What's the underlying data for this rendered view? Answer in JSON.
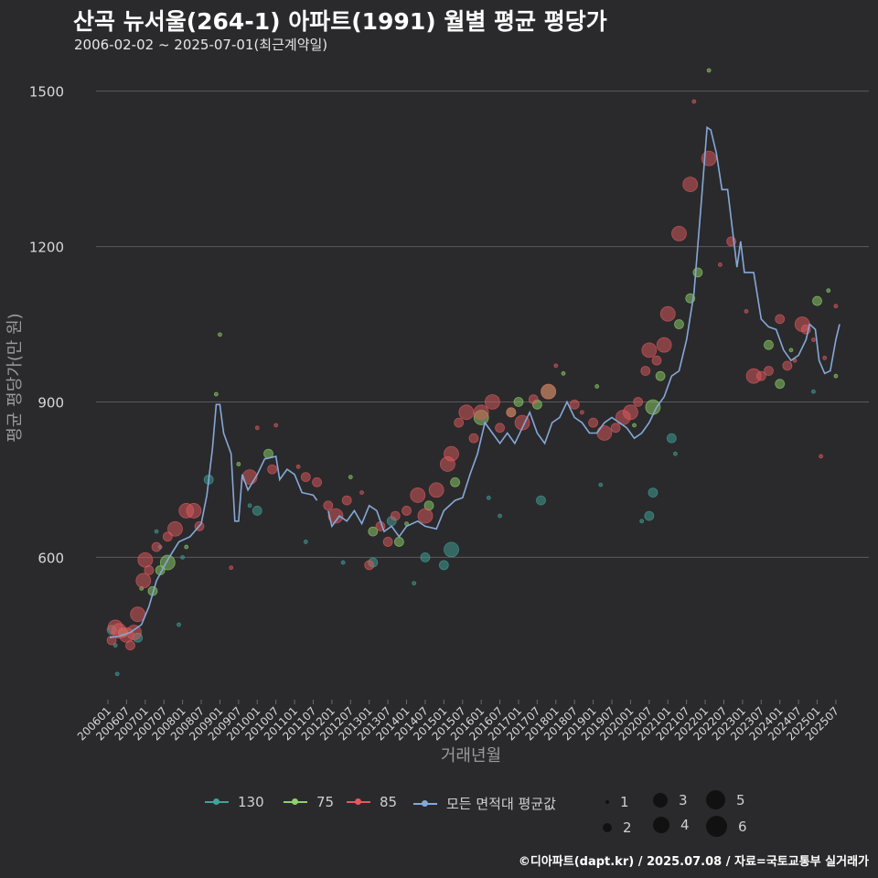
{
  "header": {
    "title": "산곡 뉴서울(264-1) 아파트(1991) 월별 평균 평당가",
    "subtitle": "2006-02-02 ~ 2025-07-01(최근계약일)"
  },
  "footer": {
    "credit": "©디아파트(dapt.kr) / 2025.07.08 / 자료=국토교통부 실거래가"
  },
  "legend": {
    "series": [
      {
        "label": "130",
        "color": "#3fa39a"
      },
      {
        "label": "75",
        "color": "#8fd16a"
      },
      {
        "label": "85",
        "color": "#e05a5e"
      },
      {
        "label": "모든 면적대 평균값",
        "color": "#86a8d8"
      }
    ],
    "sizes": [
      "1",
      "2",
      "3",
      "4",
      "5",
      "6"
    ]
  },
  "chart_data": {
    "type": "scatter",
    "title": "산곡 뉴서울(264-1) 아파트(1991) 월별 평균 평당가",
    "xlabel": "거래년월",
    "ylabel": "평균 평당가(만 원)",
    "ylim": [
      320,
      1570
    ],
    "yticks": [
      600,
      900,
      1200,
      1500
    ],
    "xlim": [
      2006.0,
      2025.6
    ],
    "xtick_labels": [
      "200601",
      "200607",
      "200701",
      "200707",
      "200801",
      "200807",
      "200901",
      "200907",
      "201001",
      "201007",
      "201101",
      "201107",
      "201201",
      "201207",
      "201301",
      "201307",
      "201401",
      "201407",
      "201501",
      "201507",
      "201601",
      "201607",
      "201701",
      "201707",
      "201801",
      "201807",
      "201901",
      "201907",
      "202001",
      "202007",
      "202101",
      "202107",
      "202201",
      "202207",
      "202301",
      "202307",
      "202401",
      "202407",
      "202501",
      "202507"
    ],
    "average_line": {
      "name": "모든 면적대 평균값",
      "segments": [
        [
          [
            2006.05,
            445
          ],
          [
            2006.3,
            448
          ],
          [
            2006.6,
            455
          ],
          [
            2006.9,
            470
          ],
          [
            2007.1,
            505
          ],
          [
            2007.3,
            555
          ],
          [
            2007.6,
            595
          ],
          [
            2007.9,
            630
          ],
          [
            2008.2,
            640
          ],
          [
            2008.5,
            665
          ],
          [
            2008.65,
            720
          ],
          [
            2008.8,
            810
          ],
          [
            2008.9,
            895
          ],
          [
            2009.0,
            895
          ],
          [
            2009.1,
            840
          ],
          [
            2009.3,
            800
          ],
          [
            2009.4,
            670
          ],
          [
            2009.5,
            670
          ],
          [
            2009.6,
            760
          ],
          [
            2009.75,
            730
          ],
          [
            2010.0,
            760
          ],
          [
            2010.2,
            790
          ],
          [
            2010.5,
            795
          ],
          [
            2010.6,
            750
          ],
          [
            2010.8,
            770
          ],
          [
            2011.0,
            760
          ],
          [
            2011.2,
            725
          ],
          [
            2011.5,
            720
          ],
          [
            2011.6,
            710
          ]
        ],
        [
          [
            2011.9,
            690
          ],
          [
            2012.0,
            660
          ],
          [
            2012.2,
            680
          ],
          [
            2012.4,
            670
          ],
          [
            2012.6,
            690
          ],
          [
            2012.8,
            665
          ],
          [
            2013.0,
            700
          ],
          [
            2013.2,
            690
          ],
          [
            2013.4,
            650
          ],
          [
            2013.6,
            660
          ],
          [
            2013.8,
            640
          ],
          [
            2014.0,
            660
          ],
          [
            2014.3,
            670
          ],
          [
            2014.5,
            660
          ],
          [
            2014.8,
            655
          ],
          [
            2015.0,
            690
          ],
          [
            2015.3,
            710
          ],
          [
            2015.5,
            715
          ],
          [
            2015.7,
            760
          ],
          [
            2015.9,
            800
          ],
          [
            2016.1,
            860
          ],
          [
            2016.3,
            840
          ],
          [
            2016.5,
            820
          ],
          [
            2016.7,
            840
          ],
          [
            2016.9,
            820
          ],
          [
            2017.1,
            850
          ],
          [
            2017.3,
            880
          ],
          [
            2017.5,
            840
          ],
          [
            2017.7,
            820
          ],
          [
            2017.9,
            860
          ],
          [
            2018.1,
            870
          ],
          [
            2018.3,
            900
          ],
          [
            2018.5,
            870
          ],
          [
            2018.7,
            860
          ],
          [
            2018.9,
            840
          ],
          [
            2019.1,
            840
          ],
          [
            2019.3,
            860
          ],
          [
            2019.5,
            870
          ],
          [
            2019.7,
            860
          ],
          [
            2019.9,
            850
          ],
          [
            2020.1,
            830
          ],
          [
            2020.3,
            840
          ],
          [
            2020.5,
            860
          ],
          [
            2020.7,
            890
          ],
          [
            2020.9,
            910
          ],
          [
            2021.1,
            950
          ],
          [
            2021.3,
            960
          ],
          [
            2021.5,
            1020
          ],
          [
            2021.7,
            1110
          ],
          [
            2021.9,
            1290
          ],
          [
            2022.05,
            1430
          ],
          [
            2022.15,
            1425
          ],
          [
            2022.3,
            1380
          ],
          [
            2022.45,
            1310
          ],
          [
            2022.6,
            1310
          ],
          [
            2022.75,
            1220
          ],
          [
            2022.85,
            1160
          ],
          [
            2022.95,
            1210
          ],
          [
            2023.05,
            1150
          ],
          [
            2023.3,
            1150
          ],
          [
            2023.5,
            1060
          ],
          [
            2023.7,
            1045
          ],
          [
            2023.9,
            1040
          ],
          [
            2024.1,
            1000
          ],
          [
            2024.3,
            980
          ],
          [
            2024.5,
            990
          ],
          [
            2024.7,
            1020
          ],
          [
            2024.8,
            1050
          ],
          [
            2024.95,
            1040
          ],
          [
            2025.05,
            980
          ],
          [
            2025.2,
            955
          ],
          [
            2025.35,
            960
          ],
          [
            2025.5,
            1020
          ],
          [
            2025.6,
            1050
          ]
        ]
      ]
    },
    "series": [
      {
        "name": "130",
        "points": [
          [
            2006.1,
            460,
            2
          ],
          [
            2006.2,
            430,
            1
          ],
          [
            2006.25,
            375,
            1
          ],
          [
            2006.8,
            445,
            2
          ],
          [
            2007.3,
            650,
            1
          ],
          [
            2007.4,
            620,
            1
          ],
          [
            2007.9,
            470,
            1
          ],
          [
            2008.0,
            600,
            1
          ],
          [
            2008.7,
            750,
            2
          ],
          [
            2009.8,
            700,
            1
          ],
          [
            2010.0,
            690,
            2
          ],
          [
            2011.3,
            630,
            1
          ],
          [
            2012.3,
            590,
            1
          ],
          [
            2013.1,
            590,
            2
          ],
          [
            2013.6,
            670,
            2
          ],
          [
            2014.2,
            550,
            1
          ],
          [
            2014.5,
            600,
            2
          ],
          [
            2015.0,
            585,
            2
          ],
          [
            2015.2,
            615,
            3
          ],
          [
            2016.2,
            715,
            1
          ],
          [
            2016.5,
            680,
            1
          ],
          [
            2017.6,
            710,
            2
          ],
          [
            2019.2,
            740,
            1
          ],
          [
            2020.3,
            670,
            1
          ],
          [
            2020.5,
            680,
            2
          ],
          [
            2020.6,
            725,
            2
          ],
          [
            2021.1,
            830,
            2
          ],
          [
            2021.2,
            800,
            1
          ],
          [
            2024.9,
            920,
            1
          ]
        ]
      },
      {
        "name": "75",
        "points": [
          [
            2006.4,
            455,
            2
          ],
          [
            2006.9,
            540,
            1
          ],
          [
            2007.2,
            535,
            2
          ],
          [
            2007.4,
            575,
            2
          ],
          [
            2007.6,
            590,
            3
          ],
          [
            2008.1,
            620,
            1
          ],
          [
            2008.9,
            915,
            1
          ],
          [
            2009.0,
            1030,
            1
          ],
          [
            2009.5,
            780,
            1
          ],
          [
            2010.3,
            800,
            2
          ],
          [
            2012.5,
            755,
            1
          ],
          [
            2013.1,
            650,
            2
          ],
          [
            2013.8,
            630,
            2
          ],
          [
            2014.0,
            665,
            1
          ],
          [
            2014.6,
            700,
            2
          ],
          [
            2015.3,
            745,
            2
          ],
          [
            2016.0,
            870,
            3
          ],
          [
            2016.8,
            880,
            2
          ],
          [
            2017.0,
            900,
            2
          ],
          [
            2017.5,
            895,
            2
          ],
          [
            2017.8,
            920,
            3
          ],
          [
            2018.2,
            955,
            1
          ],
          [
            2019.1,
            930,
            1
          ],
          [
            2020.1,
            855,
            1
          ],
          [
            2020.6,
            890,
            3
          ],
          [
            2020.8,
            950,
            2
          ],
          [
            2021.3,
            1050,
            2
          ],
          [
            2021.6,
            1100,
            2
          ],
          [
            2021.8,
            1150,
            2
          ],
          [
            2022.1,
            1540,
            1
          ],
          [
            2023.7,
            1010,
            2
          ],
          [
            2024.0,
            935,
            2
          ],
          [
            2024.3,
            1000,
            1
          ],
          [
            2025.0,
            1095,
            2
          ],
          [
            2025.3,
            1115,
            1
          ],
          [
            2025.5,
            950,
            1
          ]
        ]
      },
      {
        "name": "85",
        "points": [
          [
            2006.1,
            440,
            2
          ],
          [
            2006.2,
            465,
            3
          ],
          [
            2006.3,
            458,
            3
          ],
          [
            2006.5,
            450,
            3
          ],
          [
            2006.6,
            430,
            2
          ],
          [
            2006.7,
            455,
            3
          ],
          [
            2006.8,
            490,
            3
          ],
          [
            2006.95,
            555,
            3
          ],
          [
            2007.0,
            595,
            3
          ],
          [
            2007.1,
            575,
            2
          ],
          [
            2007.3,
            620,
            2
          ],
          [
            2007.6,
            640,
            2
          ],
          [
            2007.8,
            655,
            3
          ],
          [
            2008.1,
            690,
            3
          ],
          [
            2008.3,
            690,
            3
          ],
          [
            2008.45,
            660,
            2
          ],
          [
            2009.3,
            580,
            1
          ],
          [
            2009.8,
            755,
            3
          ],
          [
            2010.0,
            850,
            1
          ],
          [
            2010.4,
            770,
            2
          ],
          [
            2010.5,
            855,
            1
          ],
          [
            2011.1,
            775,
            1
          ],
          [
            2011.3,
            755,
            2
          ],
          [
            2011.6,
            745,
            2
          ],
          [
            2011.9,
            700,
            2
          ],
          [
            2012.1,
            680,
            3
          ],
          [
            2012.4,
            710,
            2
          ],
          [
            2012.8,
            725,
            1
          ],
          [
            2013.0,
            585,
            2
          ],
          [
            2013.3,
            660,
            2
          ],
          [
            2013.5,
            630,
            2
          ],
          [
            2013.7,
            680,
            2
          ],
          [
            2014.0,
            690,
            2
          ],
          [
            2014.3,
            720,
            3
          ],
          [
            2014.5,
            680,
            3
          ],
          [
            2014.8,
            730,
            3
          ],
          [
            2015.1,
            780,
            3
          ],
          [
            2015.2,
            800,
            3
          ],
          [
            2015.4,
            860,
            2
          ],
          [
            2015.6,
            880,
            3
          ],
          [
            2015.8,
            830,
            2
          ],
          [
            2016.0,
            880,
            3
          ],
          [
            2016.3,
            900,
            3
          ],
          [
            2016.5,
            850,
            2
          ],
          [
            2016.8,
            880,
            2
          ],
          [
            2017.1,
            860,
            3
          ],
          [
            2017.4,
            905,
            2
          ],
          [
            2017.8,
            920,
            3
          ],
          [
            2018.0,
            970,
            1
          ],
          [
            2018.5,
            895,
            2
          ],
          [
            2018.7,
            880,
            1
          ],
          [
            2019.0,
            860,
            2
          ],
          [
            2019.3,
            840,
            3
          ],
          [
            2019.6,
            850,
            2
          ],
          [
            2019.8,
            870,
            3
          ],
          [
            2020.0,
            880,
            3
          ],
          [
            2020.2,
            900,
            2
          ],
          [
            2020.4,
            960,
            2
          ],
          [
            2020.5,
            1000,
            3
          ],
          [
            2020.7,
            980,
            2
          ],
          [
            2020.9,
            1010,
            3
          ],
          [
            2021.0,
            1070,
            3
          ],
          [
            2021.3,
            1225,
            3
          ],
          [
            2021.6,
            1320,
            3
          ],
          [
            2021.7,
            1480,
            1
          ],
          [
            2022.1,
            1370,
            3
          ],
          [
            2022.4,
            1165,
            1
          ],
          [
            2022.7,
            1210,
            2
          ],
          [
            2023.1,
            1075,
            1
          ],
          [
            2023.3,
            950,
            3
          ],
          [
            2023.5,
            950,
            2
          ],
          [
            2023.7,
            960,
            2
          ],
          [
            2024.0,
            1060,
            2
          ],
          [
            2024.2,
            970,
            2
          ],
          [
            2024.4,
            980,
            1
          ],
          [
            2024.6,
            1050,
            3
          ],
          [
            2024.7,
            1040,
            2
          ],
          [
            2024.9,
            1020,
            1
          ],
          [
            2025.1,
            795,
            1
          ],
          [
            2025.2,
            985,
            1
          ],
          [
            2025.5,
            1085,
            1
          ]
        ]
      }
    ]
  }
}
